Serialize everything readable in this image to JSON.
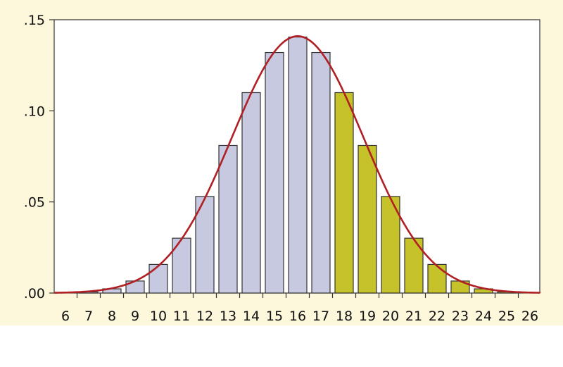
{
  "chart_data": {
    "type": "bar",
    "categories": [
      "6",
      "7",
      "8",
      "9",
      "10",
      "11",
      "12",
      "13",
      "14",
      "15",
      "16",
      "17",
      "18",
      "19",
      "20",
      "21",
      "22",
      "23",
      "24",
      "25",
      "26"
    ],
    "values": [
      0.0,
      0.0006,
      0.0023,
      0.0066,
      0.0157,
      0.0301,
      0.053,
      0.081,
      0.11,
      0.132,
      0.1405,
      0.132,
      0.11,
      0.081,
      0.053,
      0.0301,
      0.0157,
      0.0066,
      0.0023,
      0.0006,
      0.0
    ],
    "highlight_from": "18",
    "colors": {
      "base": "#c7c9e0",
      "highlight": "#c5c22a",
      "curve": "#b01f24",
      "edge": "#333333"
    },
    "curve": {
      "type": "normal",
      "mean": 16,
      "sd": 2.83
    },
    "title": "",
    "xlabel": "",
    "ylabel": "",
    "ylim": [
      0,
      0.15
    ],
    "yticks": [
      0,
      0.05,
      0.1,
      0.15
    ],
    "ytick_labels": [
      ".00",
      ".05",
      ".10",
      ".15"
    ],
    "grid": false
  }
}
